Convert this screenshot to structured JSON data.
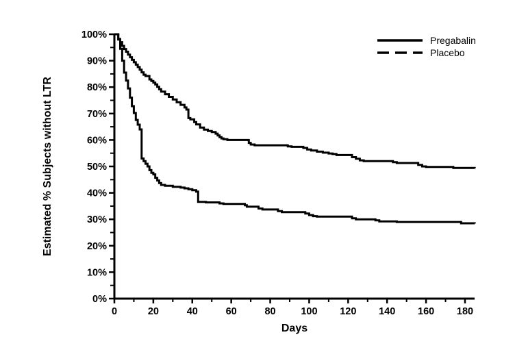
{
  "chart_data": {
    "type": "line",
    "subtype": "kaplan-meier-step",
    "title": "",
    "xlabel": "Days",
    "ylabel": "Estimated % Subjects without LTR",
    "xlim": [
      0,
      185
    ],
    "ylim": [
      0,
      100
    ],
    "grid": false,
    "background_color": "#ffffff",
    "line_color": "#000000",
    "legend_position": "top-right",
    "x_ticks": {
      "major": [
        {
          "value": 0,
          "label": "0"
        },
        {
          "value": 20,
          "label": "20"
        },
        {
          "value": 40,
          "label": "40"
        },
        {
          "value": 60,
          "label": "60"
        },
        {
          "value": 80,
          "label": "80"
        },
        {
          "value": 100,
          "label": "100"
        },
        {
          "value": 120,
          "label": "120"
        },
        {
          "value": 140,
          "label": "140"
        },
        {
          "value": 160,
          "label": "160"
        },
        {
          "value": 180,
          "label": "180"
        }
      ],
      "minor": [
        10,
        30,
        50,
        70,
        90,
        110,
        130,
        150,
        170
      ]
    },
    "y_ticks": {
      "major": [
        {
          "value": 100,
          "label": "100%"
        },
        {
          "value": 90,
          "label": "90%"
        },
        {
          "value": 80,
          "label": "80%"
        },
        {
          "value": 70,
          "label": "70%"
        },
        {
          "value": 60,
          "label": "60%"
        },
        {
          "value": 50,
          "label": "50%"
        },
        {
          "value": 40,
          "label": "40%"
        },
        {
          "value": 30,
          "label": "30%"
        },
        {
          "value": 20,
          "label": "20%"
        },
        {
          "value": 10,
          "label": "10%"
        },
        {
          "value": 0,
          "label": "0%"
        }
      ],
      "minor": [
        95,
        85,
        75,
        65,
        55,
        45,
        35,
        25,
        15,
        5
      ]
    },
    "series": [
      {
        "name": "Pregabalin",
        "color": "#000000",
        "plot_line_style": "solid",
        "legend_line_style": "solid",
        "points": [
          [
            0,
            100
          ],
          [
            2,
            98.2
          ],
          [
            3,
            97
          ],
          [
            4,
            95.6
          ],
          [
            5,
            94.4
          ],
          [
            6,
            93.4
          ],
          [
            7,
            92.3
          ],
          [
            8,
            91.3
          ],
          [
            9,
            90.3
          ],
          [
            10,
            89.4
          ],
          [
            11,
            88.5
          ],
          [
            12,
            87.6
          ],
          [
            13,
            86.6
          ],
          [
            14,
            85.6
          ],
          [
            15,
            84.7
          ],
          [
            16,
            84.2
          ],
          [
            18,
            82.9
          ],
          [
            19,
            82.3
          ],
          [
            20,
            81.7
          ],
          [
            21,
            81
          ],
          [
            22,
            80.1
          ],
          [
            23,
            79.2
          ],
          [
            24,
            78.3
          ],
          [
            26,
            77.3
          ],
          [
            28,
            76.3
          ],
          [
            30,
            75.3
          ],
          [
            32,
            74.3
          ],
          [
            34,
            73.3
          ],
          [
            36,
            72.3
          ],
          [
            37,
            71.5
          ],
          [
            38,
            68.3
          ],
          [
            39,
            67.8
          ],
          [
            41,
            66.8
          ],
          [
            42,
            65.9
          ],
          [
            44,
            64.7
          ],
          [
            46,
            63.9
          ],
          [
            48,
            63.4
          ],
          [
            50,
            63
          ],
          [
            52,
            62.4
          ],
          [
            53,
            61.7
          ],
          [
            54,
            61.1
          ],
          [
            55,
            60.6
          ],
          [
            56,
            60.3
          ],
          [
            58,
            60
          ],
          [
            69,
            58.9
          ],
          [
            70,
            58.3
          ],
          [
            72,
            58
          ],
          [
            89,
            57.6
          ],
          [
            91,
            57.4
          ],
          [
            97,
            57
          ],
          [
            99,
            56.4
          ],
          [
            101,
            56
          ],
          [
            104,
            55.6
          ],
          [
            107,
            55.2
          ],
          [
            110,
            54.9
          ],
          [
            112,
            54.7
          ],
          [
            114,
            54.3
          ],
          [
            122,
            53.5
          ],
          [
            124,
            52.9
          ],
          [
            126,
            52.3
          ],
          [
            128,
            52
          ],
          [
            143,
            51.6
          ],
          [
            145,
            51.3
          ],
          [
            156,
            50.6
          ],
          [
            158,
            50
          ],
          [
            160,
            49.8
          ],
          [
            174,
            49.4
          ],
          [
            185,
            49.3
          ]
        ]
      },
      {
        "name": "Placebo",
        "color": "#000000",
        "plot_line_style": "solid",
        "legend_line_style": "dashed",
        "points": [
          [
            0,
            100
          ],
          [
            2,
            98
          ],
          [
            3,
            94.5
          ],
          [
            4,
            90
          ],
          [
            5,
            85.5
          ],
          [
            6,
            82.5
          ],
          [
            7,
            79.5
          ],
          [
            8,
            76
          ],
          [
            9,
            72.8
          ],
          [
            10,
            70.2
          ],
          [
            11,
            67.6
          ],
          [
            12,
            65.8
          ],
          [
            13,
            64
          ],
          [
            14,
            53
          ],
          [
            15,
            52
          ],
          [
            16,
            51
          ],
          [
            17,
            50
          ],
          [
            18,
            48.6
          ],
          [
            19,
            47.6
          ],
          [
            20,
            47
          ],
          [
            21,
            45.7
          ],
          [
            22,
            44.7
          ],
          [
            23,
            43.7
          ],
          [
            24,
            43
          ],
          [
            26,
            42.7
          ],
          [
            30,
            42.3
          ],
          [
            34,
            42
          ],
          [
            36,
            41.7
          ],
          [
            38,
            41.4
          ],
          [
            40,
            41
          ],
          [
            42,
            40.5
          ],
          [
            43,
            36.6
          ],
          [
            47,
            36.4
          ],
          [
            54,
            36
          ],
          [
            56,
            35.8
          ],
          [
            67,
            35.3
          ],
          [
            68,
            34.8
          ],
          [
            74,
            34.1
          ],
          [
            76,
            33.7
          ],
          [
            84,
            33.1
          ],
          [
            86,
            32.7
          ],
          [
            98,
            32.2
          ],
          [
            100,
            31.6
          ],
          [
            102,
            31.2
          ],
          [
            104,
            31
          ],
          [
            122,
            30.4
          ],
          [
            124,
            30
          ],
          [
            134,
            29.6
          ],
          [
            136,
            29.2
          ],
          [
            145,
            29
          ],
          [
            178,
            28.5
          ],
          [
            185,
            28.4
          ]
        ]
      }
    ]
  }
}
